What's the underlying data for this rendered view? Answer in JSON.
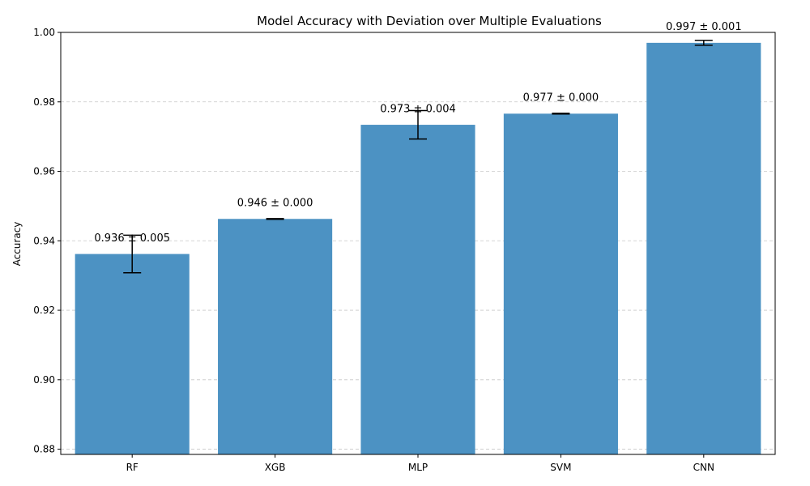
{
  "chart_data": {
    "type": "bar",
    "title": "Model Accuracy with Deviation over Multiple Evaluations",
    "xlabel": "",
    "ylabel": "Accuracy",
    "categories": [
      "RF",
      "XGB",
      "MLP",
      "SVM",
      "CNN"
    ],
    "values": [
      0.9362,
      0.9463,
      0.9734,
      0.9766,
      0.997
    ],
    "errors": [
      0.0054,
      0.0001,
      0.0041,
      0.0001,
      0.0007
    ],
    "data_labels": [
      "0.936 ± 0.005",
      "0.946 ± 0.000",
      "0.973 ± 0.004",
      "0.977 ± 0.000",
      "0.997 ± 0.001"
    ],
    "ylim": [
      0.8785,
      1.0
    ],
    "yticks": [
      0.88,
      0.9,
      0.92,
      0.94,
      0.96,
      0.98,
      1.0
    ],
    "ytick_labels": [
      "0.88",
      "0.90",
      "0.92",
      "0.94",
      "0.96",
      "0.98",
      "1.00"
    ],
    "grid": true,
    "grid_axis": "y",
    "bar_color": "#4c92c3",
    "error_color": "#000000",
    "grid_color": "#c7c7c7"
  }
}
